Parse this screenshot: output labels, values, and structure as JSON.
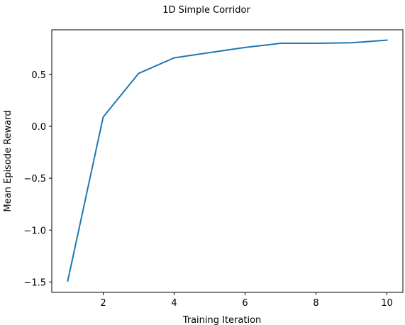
{
  "chart_data": {
    "type": "line",
    "title": "1D Simple Corridor",
    "xlabel": "Training Iteration",
    "ylabel": "Mean Episode Reward",
    "xlim": [
      0.55,
      10.45
    ],
    "ylim": [
      -1.6,
      0.93
    ],
    "x_ticks": [
      2,
      4,
      6,
      8,
      10
    ],
    "x_tick_labels": [
      "2",
      "4",
      "6",
      "8",
      "10"
    ],
    "y_ticks": [
      -1.5,
      -1.0,
      -0.5,
      0.0,
      0.5
    ],
    "y_tick_labels": [
      "−1.5",
      "−1.0",
      "−0.5",
      "0.0",
      "0.5"
    ],
    "grid": false,
    "series": [
      {
        "color": "#1f77b4",
        "x": [
          1,
          2,
          3,
          4,
          5,
          6,
          7,
          8,
          9,
          10
        ],
        "y": [
          -1.49,
          0.09,
          0.51,
          0.66,
          0.71,
          0.76,
          0.8,
          0.8,
          0.805,
          0.83
        ]
      }
    ]
  }
}
